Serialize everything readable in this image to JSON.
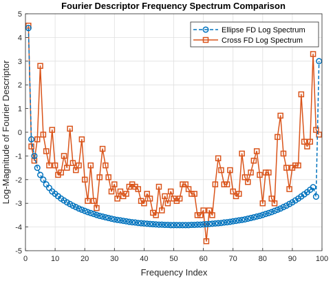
{
  "chart_data": {
    "type": "line",
    "title": "Fourier Descriptor Frequency Spectrum Comparison",
    "xlabel": "Frequency Index",
    "ylabel": "Log-Magnitude of Fourier Descriptor",
    "xlim": [
      0,
      100
    ],
    "ylim": [
      -5,
      5
    ],
    "xticks": [
      0,
      10,
      20,
      30,
      40,
      50,
      60,
      70,
      80,
      90,
      100
    ],
    "yticks": [
      -5,
      -4,
      -3,
      -2,
      -1,
      0,
      1,
      2,
      3,
      4,
      5
    ],
    "grid": true,
    "legend_position": "top-right",
    "series": [
      {
        "name": "Ellipse FD Log Spectrum",
        "color": "#0072BD",
        "marker": "circle",
        "line_style": "dashed",
        "x": [
          1,
          2,
          3,
          4,
          5,
          6,
          7,
          8,
          9,
          10,
          11,
          12,
          13,
          14,
          15,
          16,
          17,
          18,
          19,
          20,
          21,
          22,
          23,
          24,
          25,
          26,
          27,
          28,
          29,
          30,
          31,
          32,
          33,
          34,
          35,
          36,
          37,
          38,
          39,
          40,
          41,
          42,
          43,
          44,
          45,
          46,
          47,
          48,
          49,
          50,
          51,
          52,
          53,
          54,
          55,
          56,
          57,
          58,
          59,
          60,
          61,
          62,
          63,
          64,
          65,
          66,
          67,
          68,
          69,
          70,
          71,
          72,
          73,
          74,
          75,
          76,
          77,
          78,
          79,
          80,
          81,
          82,
          83,
          84,
          85,
          86,
          87,
          88,
          89,
          90,
          91,
          92,
          93,
          94,
          95,
          96,
          97,
          98,
          99
        ],
        "values": [
          4.4,
          -0.3,
          -1.0,
          -1.5,
          -1.8,
          -2.0,
          -2.2,
          -2.35,
          -2.5,
          -2.6,
          -2.7,
          -2.8,
          -2.88,
          -2.96,
          -3.03,
          -3.1,
          -3.16,
          -3.22,
          -3.27,
          -3.32,
          -3.37,
          -3.41,
          -3.45,
          -3.49,
          -3.53,
          -3.56,
          -3.59,
          -3.62,
          -3.65,
          -3.68,
          -3.7,
          -3.72,
          -3.74,
          -3.76,
          -3.78,
          -3.8,
          -3.81,
          -3.83,
          -3.84,
          -3.85,
          -3.86,
          -3.87,
          -3.88,
          -3.89,
          -3.9,
          -3.9,
          -3.91,
          -3.91,
          -3.92,
          -3.92,
          -3.92,
          -3.92,
          -3.92,
          -3.92,
          -3.92,
          -3.91,
          -3.91,
          -3.9,
          -3.9,
          -3.89,
          -3.88,
          -3.87,
          -3.86,
          -3.85,
          -3.84,
          -3.83,
          -3.81,
          -3.8,
          -3.78,
          -3.76,
          -3.74,
          -3.72,
          -3.7,
          -3.68,
          -3.65,
          -3.62,
          -3.59,
          -3.56,
          -3.53,
          -3.49,
          -3.45,
          -3.41,
          -3.37,
          -3.32,
          -3.27,
          -3.22,
          -3.16,
          -3.1,
          -3.03,
          -2.96,
          -2.88,
          -2.8,
          -2.71,
          -2.62,
          -2.53,
          -2.43,
          -2.32,
          -2.72,
          3.0
        ]
      },
      {
        "name": "Cross FD Log Spectrum",
        "color": "#D95319",
        "marker": "square",
        "line_style": "solid",
        "x": [
          1,
          2,
          3,
          4,
          5,
          6,
          7,
          8,
          9,
          10,
          11,
          12,
          13,
          14,
          15,
          16,
          17,
          18,
          19,
          20,
          21,
          22,
          23,
          24,
          25,
          26,
          27,
          28,
          29,
          30,
          31,
          32,
          33,
          34,
          35,
          36,
          37,
          38,
          39,
          40,
          41,
          42,
          43,
          44,
          45,
          46,
          47,
          48,
          49,
          50,
          51,
          52,
          53,
          54,
          55,
          56,
          57,
          58,
          59,
          60,
          61,
          62,
          63,
          64,
          65,
          66,
          67,
          68,
          69,
          70,
          71,
          72,
          73,
          74,
          75,
          76,
          77,
          78,
          79,
          80,
          81,
          82,
          83,
          84,
          85,
          86,
          87,
          88,
          89,
          90,
          91,
          92,
          93,
          94,
          95,
          96,
          97,
          98,
          99
        ],
        "values": [
          4.5,
          -0.6,
          -1.2,
          -0.3,
          2.8,
          -0.1,
          -0.8,
          -1.4,
          0.1,
          -1.4,
          -1.8,
          -1.7,
          -1.0,
          -1.5,
          0.15,
          -1.3,
          -1.6,
          -1.4,
          -0.3,
          -2.0,
          -2.9,
          -1.4,
          -2.9,
          -3.2,
          -1.9,
          -0.7,
          -1.4,
          -1.9,
          -2.5,
          -2.2,
          -2.8,
          -2.5,
          -2.7,
          -2.6,
          -2.3,
          -2.2,
          -2.3,
          -2.4,
          -2.9,
          -3.0,
          -2.6,
          -2.8,
          -3.4,
          -3.5,
          -2.3,
          -3.3,
          -2.7,
          -3.0,
          -2.5,
          -2.8,
          -2.9,
          -2.8,
          -2.2,
          -2.2,
          -2.4,
          -2.6,
          -2.6,
          -3.5,
          -3.5,
          -3.3,
          -4.6,
          -3.3,
          -3.5,
          -2.2,
          -1.1,
          -1.6,
          -2.2,
          -2.2,
          -1.6,
          -2.5,
          -2.7,
          -2.6,
          -0.9,
          -1.9,
          -2.1,
          -1.7,
          -1.2,
          -0.8,
          -1.8,
          -3.0,
          -1.7,
          -1.7,
          -2.8,
          -3.0,
          -0.2,
          0.7,
          -0.9,
          -1.5,
          -2.4,
          -1.5,
          -1.4,
          -1.4,
          1.6,
          -0.4,
          -0.6,
          -0.4,
          3.3,
          0.1,
          -0.1
        ]
      }
    ]
  }
}
